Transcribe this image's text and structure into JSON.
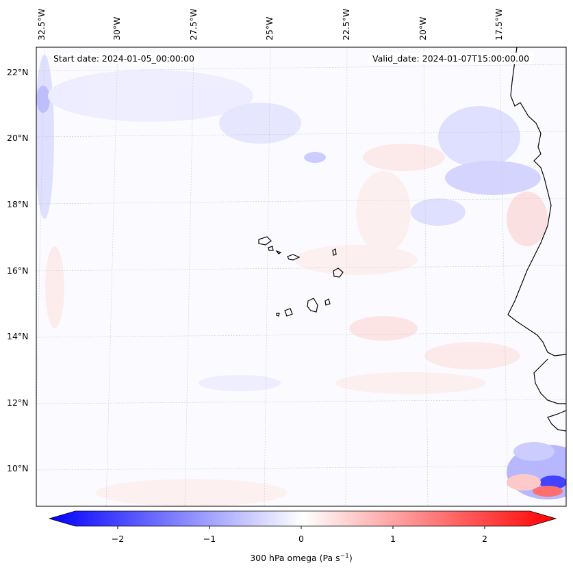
{
  "annotations": {
    "start": "Start date: 2024-01-05_00:00:00",
    "valid": "Valid_date: 2024-01-07T15:00:00.00"
  },
  "lon_labels": [
    "32.5°W",
    "30°W",
    "27.5°W",
    "25°W",
    "22.5°W",
    "20°W",
    "17.5°W"
  ],
  "lat_labels": [
    "22°N",
    "20°N",
    "18°N",
    "16°N",
    "14°N",
    "12°N",
    "10°N"
  ],
  "colorbar": {
    "ticks": [
      "−2",
      "−1",
      "0",
      "1",
      "2"
    ],
    "label": "300 hPa omega (Pa s",
    "label_sup": "−1",
    "label_close": ")",
    "colors": {
      "neg": "#0000ff",
      "mid": "#ffffff",
      "pos": "#ff0000"
    }
  },
  "features": [
    "islands",
    "coastline",
    "graticule"
  ]
}
